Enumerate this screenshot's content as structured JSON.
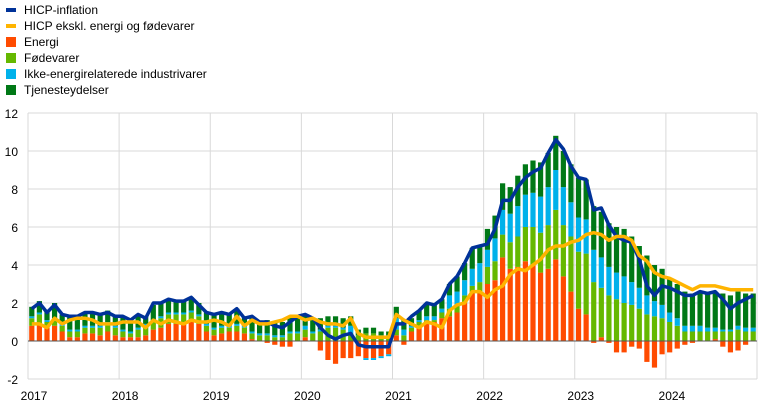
{
  "chart_data": {
    "type": "bar",
    "title": "",
    "xlabel": "",
    "ylabel": "",
    "ylim": [
      -2,
      12
    ],
    "yticks": [
      -2,
      0,
      2,
      4,
      6,
      8,
      10,
      12
    ],
    "xticks": [
      "2017",
      "2018",
      "2019",
      "2020",
      "2021",
      "2022",
      "2023",
      "2024"
    ],
    "x_start": "2017-01",
    "x_end": "2024-12",
    "frequency": "monthly",
    "grid": true,
    "legend_position": "top-left",
    "series": [
      {
        "name": "HICP-inflation",
        "type": "line",
        "color": "#003299",
        "values": [
          1.7,
          2.0,
          1.5,
          1.9,
          1.4,
          1.3,
          1.3,
          1.5,
          1.5,
          1.4,
          1.5,
          1.3,
          1.3,
          1.1,
          1.4,
          1.2,
          2.0,
          2.0,
          2.2,
          2.1,
          2.1,
          2.3,
          1.9,
          1.5,
          1.4,
          1.5,
          1.4,
          1.7,
          1.2,
          1.3,
          1.0,
          1.0,
          0.8,
          0.7,
          1.0,
          1.3,
          1.4,
          1.2,
          0.7,
          0.3,
          0.1,
          0.3,
          0.4,
          -0.2,
          -0.3,
          -0.3,
          -0.3,
          -0.3,
          0.9,
          0.9,
          1.3,
          1.6,
          2.0,
          1.9,
          2.2,
          3.0,
          3.4,
          4.1,
          4.9,
          5.0,
          5.1,
          5.9,
          7.4,
          7.4,
          8.1,
          8.6,
          8.9,
          9.1,
          9.9,
          10.6,
          10.1,
          9.2,
          8.6,
          8.5,
          6.9,
          7.0,
          6.1,
          5.5,
          5.3,
          5.2,
          4.3,
          2.9,
          2.4,
          2.9,
          2.8,
          2.6,
          2.4,
          2.4,
          2.6,
          2.5,
          2.6,
          2.2,
          1.7,
          2.0,
          2.2,
          2.4
        ]
      },
      {
        "name": "HICP ekskl. energi og fødevarer",
        "type": "line",
        "color": "#ffb400",
        "values": [
          0.9,
          0.9,
          0.7,
          1.2,
          0.9,
          1.1,
          1.2,
          1.2,
          1.1,
          0.9,
          0.9,
          0.9,
          1.0,
          1.0,
          1.0,
          0.7,
          1.1,
          0.9,
          1.1,
          1.0,
          0.9,
          1.1,
          1.0,
          1.0,
          1.1,
          1.0,
          0.8,
          1.3,
          0.8,
          1.1,
          0.9,
          0.9,
          1.0,
          1.1,
          1.3,
          1.3,
          1.1,
          1.2,
          1.0,
          0.9,
          0.9,
          0.8,
          1.2,
          0.4,
          0.2,
          0.2,
          0.2,
          0.2,
          1.4,
          1.1,
          0.9,
          0.7,
          1.0,
          0.9,
          0.7,
          1.6,
          1.9,
          2.0,
          2.6,
          2.6,
          2.3,
          2.7,
          2.9,
          3.5,
          3.8,
          3.7,
          4.0,
          4.3,
          4.8,
          5.0,
          5.0,
          5.2,
          5.3,
          5.6,
          5.7,
          5.6,
          5.3,
          5.5,
          5.5,
          5.3,
          4.5,
          4.2,
          3.6,
          3.4,
          3.3,
          3.1,
          2.9,
          2.7,
          2.9,
          2.9,
          2.9,
          2.8,
          2.7,
          2.7,
          2.7,
          2.7
        ]
      },
      {
        "name": "Energi",
        "type": "bar",
        "color": "#ff4b00",
        "values": [
          0.8,
          0.9,
          0.7,
          0.8,
          0.5,
          0.2,
          0.2,
          0.4,
          0.4,
          0.3,
          0.5,
          0.3,
          0.2,
          0.2,
          0.2,
          0.3,
          0.6,
          0.7,
          0.9,
          0.9,
          0.9,
          1.1,
          0.9,
          0.5,
          0.3,
          0.4,
          0.5,
          0.5,
          0.4,
          0.1,
          0.0,
          -0.1,
          -0.2,
          -0.3,
          -0.3,
          0.0,
          0.2,
          0.0,
          -0.5,
          -1.0,
          -1.2,
          -0.9,
          -0.9,
          -0.8,
          -0.9,
          -0.9,
          -0.8,
          -0.7,
          0.3,
          -0.2,
          0.5,
          0.8,
          1.0,
          1.0,
          1.2,
          1.3,
          1.5,
          2.0,
          2.5,
          2.5,
          3.0,
          3.2,
          4.4,
          3.8,
          3.9,
          4.2,
          4.0,
          3.6,
          3.8,
          4.3,
          3.4,
          2.6,
          1.7,
          1.4,
          -0.1,
          0.2,
          -0.1,
          -0.6,
          -0.6,
          -0.3,
          -0.4,
          -1.1,
          -1.4,
          -0.7,
          -0.6,
          -0.4,
          -0.2,
          -0.1,
          0.0,
          0.0,
          0.1,
          -0.3,
          -0.6,
          -0.5,
          -0.2,
          0.0
        ]
      },
      {
        "name": "Fødevarer",
        "type": "bar",
        "color": "#65b800",
        "values": [
          0.4,
          0.5,
          0.3,
          0.3,
          0.3,
          0.3,
          0.3,
          0.3,
          0.3,
          0.4,
          0.4,
          0.4,
          0.3,
          0.2,
          0.4,
          0.5,
          0.4,
          0.5,
          0.5,
          0.5,
          0.5,
          0.4,
          0.4,
          0.3,
          0.3,
          0.3,
          0.2,
          0.3,
          0.3,
          0.3,
          0.3,
          0.3,
          0.2,
          0.2,
          0.4,
          0.4,
          0.4,
          0.4,
          0.5,
          0.7,
          0.7,
          0.6,
          0.4,
          0.3,
          0.4,
          0.4,
          0.3,
          0.3,
          0.3,
          0.3,
          0.2,
          0.2,
          0.1,
          0.1,
          0.3,
          0.4,
          0.4,
          0.4,
          0.4,
          0.6,
          0.9,
          1.0,
          1.2,
          1.4,
          1.6,
          1.8,
          2.0,
          2.1,
          2.3,
          2.6,
          2.7,
          2.9,
          3.0,
          3.2,
          3.1,
          2.6,
          2.4,
          2.2,
          2.0,
          1.9,
          1.7,
          1.4,
          1.3,
          1.2,
          1.0,
          0.8,
          0.5,
          0.5,
          0.5,
          0.5,
          0.4,
          0.5,
          0.5,
          0.6,
          0.5,
          0.5
        ]
      },
      {
        "name": "Ikke-energirelaterede industrivarer",
        "type": "bar",
        "color": "#00b1ea",
        "values": [
          0.1,
          0.1,
          0.1,
          0.1,
          0.1,
          0.1,
          0.1,
          0.1,
          0.1,
          0.1,
          0.1,
          0.1,
          0.1,
          0.1,
          0.1,
          0.1,
          0.1,
          0.1,
          0.1,
          0.1,
          0.1,
          0.1,
          0.1,
          0.1,
          0.1,
          0.1,
          0.1,
          0.1,
          0.1,
          0.1,
          0.1,
          0.1,
          0.1,
          0.1,
          0.1,
          0.1,
          0.2,
          0.1,
          0.1,
          0.1,
          0.1,
          0.1,
          0.4,
          0.0,
          -0.1,
          -0.1,
          -0.1,
          -0.1,
          0.6,
          0.3,
          0.1,
          0.1,
          0.2,
          0.2,
          0.2,
          0.7,
          0.7,
          0.8,
          0.9,
          1.0,
          0.9,
          1.2,
          1.3,
          1.5,
          1.6,
          1.7,
          1.8,
          1.9,
          2.0,
          2.1,
          2.0,
          1.8,
          1.8,
          1.8,
          1.7,
          1.6,
          1.5,
          1.4,
          1.4,
          1.2,
          1.1,
          1.0,
          0.8,
          0.7,
          0.5,
          0.4,
          0.3,
          0.3,
          0.3,
          0.2,
          0.2,
          0.1,
          0.1,
          0.2,
          0.2,
          0.2
        ]
      },
      {
        "name": "Tjenesteydelser",
        "type": "bar",
        "color": "#007816",
        "values": [
          0.5,
          0.6,
          0.5,
          0.8,
          0.5,
          0.7,
          0.7,
          0.7,
          0.7,
          0.6,
          0.6,
          0.5,
          0.7,
          0.6,
          0.7,
          0.4,
          0.8,
          0.7,
          0.7,
          0.6,
          0.6,
          0.7,
          0.6,
          0.6,
          0.7,
          0.7,
          0.6,
          0.8,
          0.5,
          0.8,
          0.6,
          0.7,
          0.7,
          0.7,
          0.8,
          0.8,
          0.6,
          0.6,
          0.6,
          0.5,
          0.5,
          0.5,
          0.5,
          0.3,
          0.3,
          0.3,
          0.2,
          0.2,
          0.6,
          0.5,
          0.4,
          0.5,
          0.7,
          0.6,
          0.5,
          0.6,
          0.8,
          0.9,
          1.1,
          0.9,
          1.1,
          1.2,
          1.4,
          1.4,
          1.6,
          1.6,
          1.7,
          1.8,
          1.8,
          1.8,
          1.9,
          2.0,
          2.1,
          2.1,
          2.3,
          2.4,
          2.3,
          2.4,
          2.5,
          2.4,
          2.2,
          2.1,
          1.9,
          1.9,
          1.8,
          1.8,
          1.8,
          1.7,
          1.8,
          1.8,
          1.8,
          1.9,
          1.8,
          1.8,
          1.8,
          1.8
        ]
      }
    ]
  }
}
